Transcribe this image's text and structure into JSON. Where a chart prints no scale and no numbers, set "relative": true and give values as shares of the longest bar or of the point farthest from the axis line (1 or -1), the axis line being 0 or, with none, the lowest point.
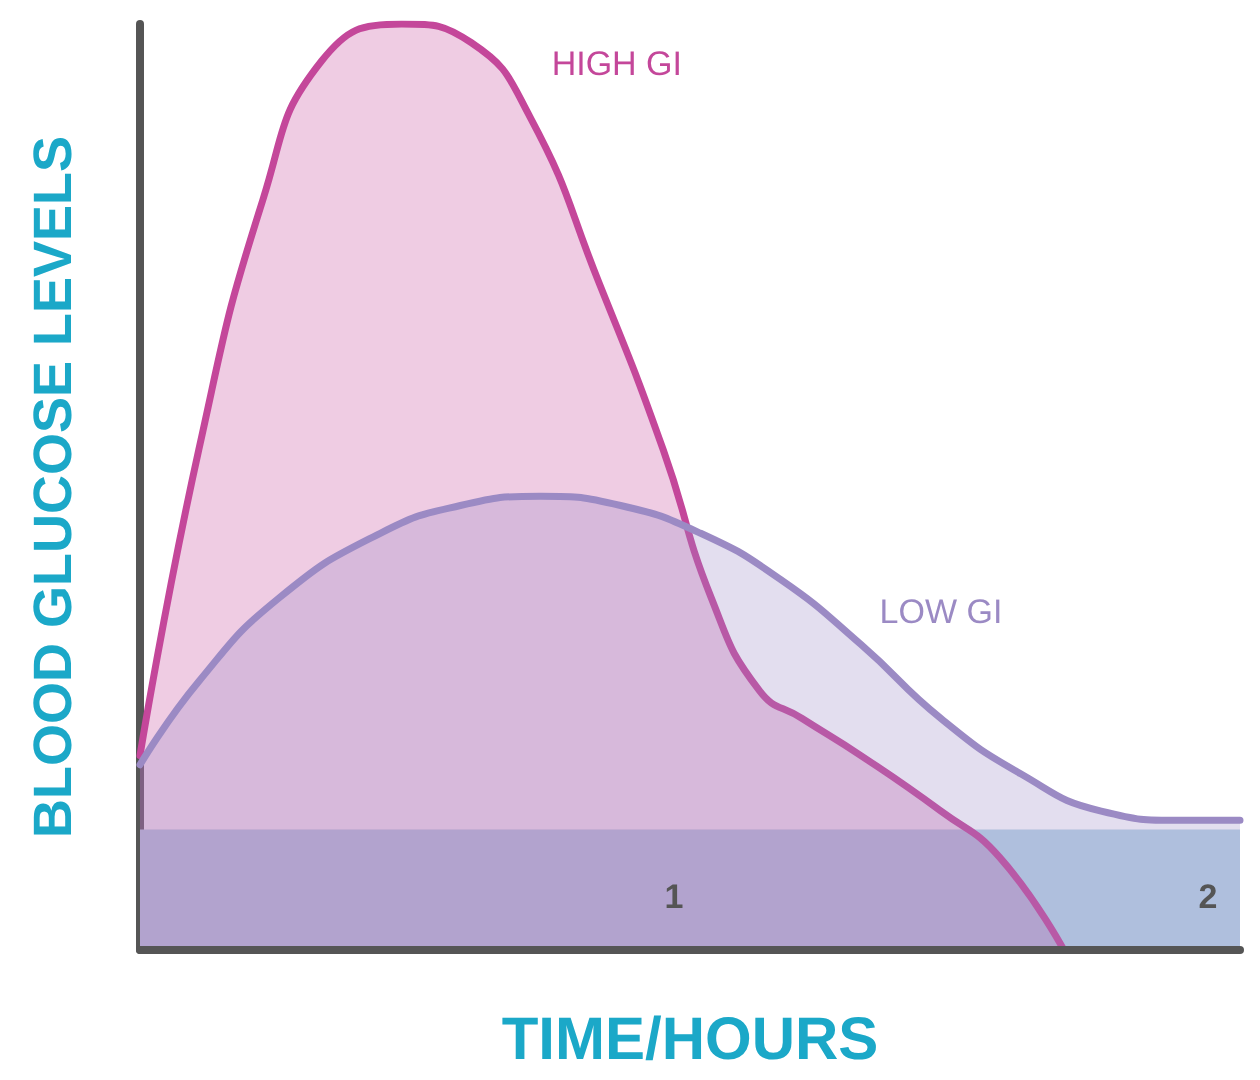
{
  "chart_data": {
    "type": "area",
    "relative": true,
    "xlabel": "TIME/HOURS",
    "ylabel": "BLOOD GLUCOSE LEVELS",
    "xlim": [
      0,
      2.06
    ],
    "xticks": [
      1,
      2
    ],
    "grid": false,
    "legend": false,
    "marker": "none",
    "line_style": "solid",
    "series": [
      {
        "name": "HIGH GI",
        "color": "#c4479a",
        "x": [
          0,
          0.11,
          0.23,
          0.34,
          0.49,
          0.62,
          0.73,
          0.86,
          0.98,
          1.07,
          1.16,
          1.24,
          1.35,
          1.5,
          1.61,
          1.73
        ],
        "values": [
          0.21,
          0.54,
          0.81,
          0.96,
          1.0,
          0.98,
          0.9,
          0.72,
          0.54,
          0.38,
          0.28,
          0.25,
          0.21,
          0.15,
          0.1,
          0
        ]
      },
      {
        "name": "LOW GI",
        "color": "#9b8ac4",
        "x": [
          0,
          0.11,
          0.26,
          0.45,
          0.6,
          0.75,
          0.9,
          1.05,
          1.2,
          1.35,
          1.5,
          1.65,
          1.8,
          1.95,
          2.06
        ],
        "values": [
          0.2,
          0.29,
          0.38,
          0.45,
          0.48,
          0.49,
          0.48,
          0.45,
          0.4,
          0.33,
          0.25,
          0.19,
          0.15,
          0.14,
          0.14
        ]
      }
    ],
    "bands": [
      {
        "axis": "y",
        "from": 0,
        "to": 0.13,
        "color": "#b8d4e6"
      }
    ]
  }
}
